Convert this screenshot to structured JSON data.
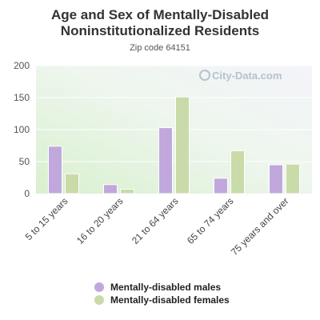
{
  "title_line1": "Age and Sex of Mentally-Disabled",
  "title_line2": "Noninstitutionalized Residents",
  "subtitle": "Zip code 64151",
  "watermark": "City-Data.com",
  "chart_data": {
    "type": "bar",
    "categories": [
      "5 to 15 years",
      "16 to 20 years",
      "21 to 64 years",
      "65 to 74 years",
      "75 years and over"
    ],
    "series": [
      {
        "name": "Mentally-disabled males",
        "color": "#c0a8dc",
        "values": [
          74,
          14,
          103,
          24,
          45
        ]
      },
      {
        "name": "Mentally-disabled females",
        "color": "#c8dba8",
        "values": [
          31,
          7,
          151,
          67,
          46
        ]
      }
    ],
    "yticks": [
      0,
      50,
      100,
      150,
      200
    ],
    "ylim": [
      0,
      200
    ],
    "legend_position": "bottom"
  }
}
